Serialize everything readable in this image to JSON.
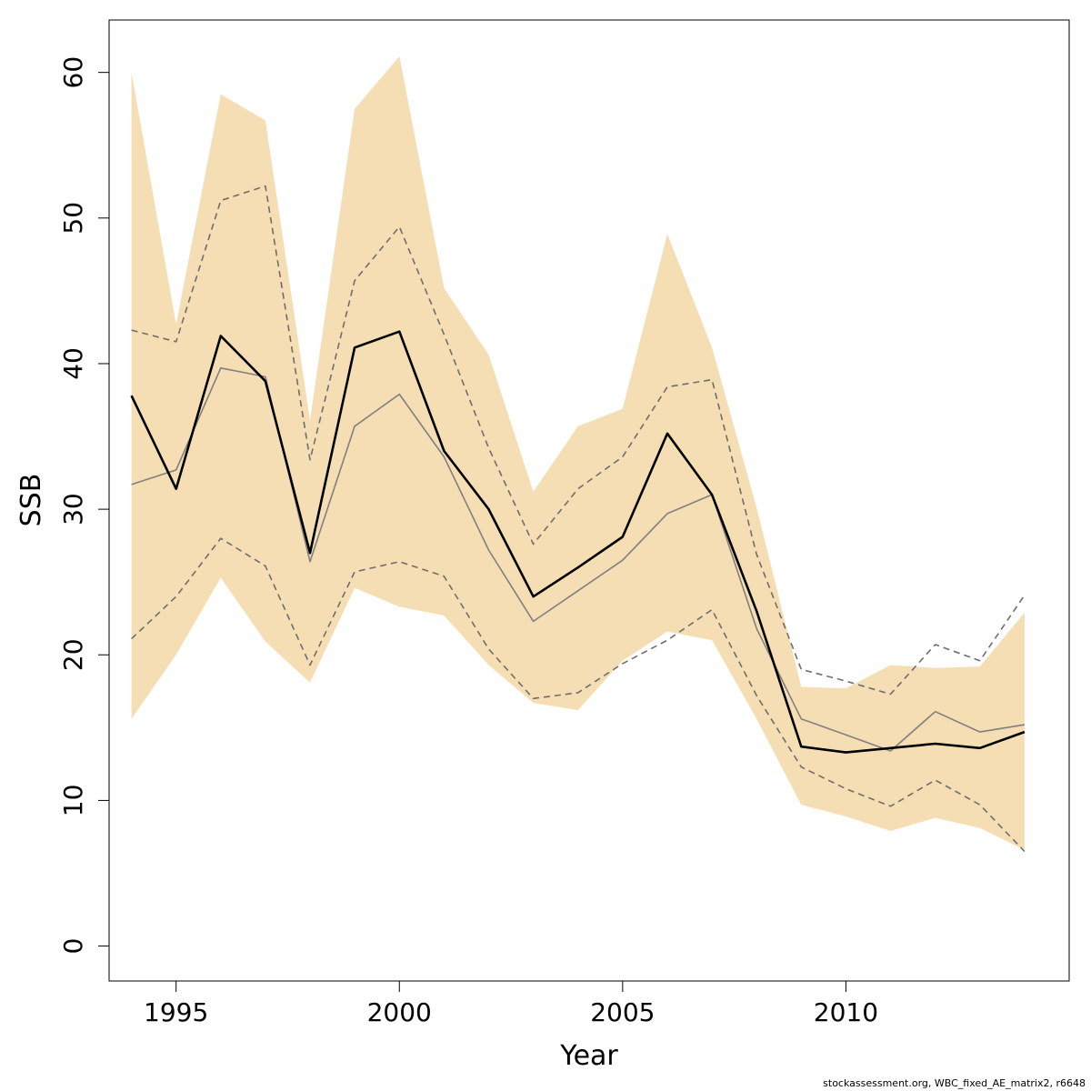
{
  "chart_data": {
    "type": "line",
    "xlabel": "Year",
    "ylabel": "SSB",
    "xlim": [
      1993.5,
      2015.0
    ],
    "ylim": [
      -2.4,
      63.6
    ],
    "x_ticks": [
      1995,
      2000,
      2005,
      2010
    ],
    "y_ticks": [
      0,
      10,
      20,
      30,
      40,
      50,
      60
    ],
    "grid": false,
    "legend": "none",
    "x": [
      1994,
      1995,
      1996,
      1997,
      1998,
      1999,
      2000,
      2001,
      2002,
      2003,
      2004,
      2005,
      2006,
      2007,
      2008,
      2009,
      2010,
      2011,
      2012,
      2013,
      2014
    ],
    "band": {
      "color": "#f5deb3",
      "upper": [
        60.0,
        42.7,
        58.5,
        56.7,
        36.1,
        57.5,
        61.1,
        45.2,
        40.6,
        31.2,
        35.7,
        36.9,
        48.9,
        41.1,
        30.1,
        17.8,
        17.7,
        19.3,
        19.1,
        19.2,
        22.9
      ],
      "lower": [
        15.6,
        20.0,
        25.3,
        20.9,
        18.1,
        24.6,
        23.3,
        22.7,
        19.3,
        16.7,
        16.2,
        19.6,
        21.6,
        21.0,
        15.6,
        9.7,
        8.9,
        7.9,
        8.8,
        8.1,
        6.6
      ]
    },
    "series": [
      {
        "values": [
          37.8,
          31.4,
          41.9,
          38.8,
          27.0,
          41.1,
          42.2,
          34.0,
          30.0,
          24.0,
          26.0,
          28.1,
          35.2,
          31.0,
          23.0,
          13.7,
          13.3,
          13.6,
          13.9,
          13.6,
          14.7
        ],
        "color": "#000000",
        "style": "solid"
      },
      {
        "values": [
          31.7,
          32.7,
          39.7,
          39.1,
          26.4,
          35.7,
          37.9,
          33.6,
          27.2,
          22.3,
          24.4,
          26.5,
          29.7,
          31.0,
          21.8,
          15.6,
          14.5,
          13.4,
          16.1,
          14.7,
          15.2
        ],
        "color": "#808080",
        "style": "solid"
      },
      {
        "values": [
          42.3,
          41.5,
          51.2,
          52.2,
          33.4,
          45.7,
          49.4,
          42.0,
          34.2,
          27.6,
          31.4,
          33.6,
          38.4,
          38.9,
          26.9,
          19.0,
          18.2,
          17.3,
          20.7,
          19.6,
          24.1
        ],
        "color": "#6e6e6e",
        "style": "dashed"
      },
      {
        "values": [
          21.1,
          24.0,
          28.0,
          26.1,
          19.3,
          25.7,
          26.4,
          25.4,
          20.4,
          17.0,
          17.4,
          19.4,
          21.0,
          23.1,
          17.2,
          12.3,
          10.8,
          9.6,
          11.4,
          9.7,
          6.5
        ],
        "color": "#6e6e6e",
        "style": "dashed"
      }
    ]
  },
  "footnote": "stockassessment.org, WBC_fixed_AE_matrix2, r6648"
}
